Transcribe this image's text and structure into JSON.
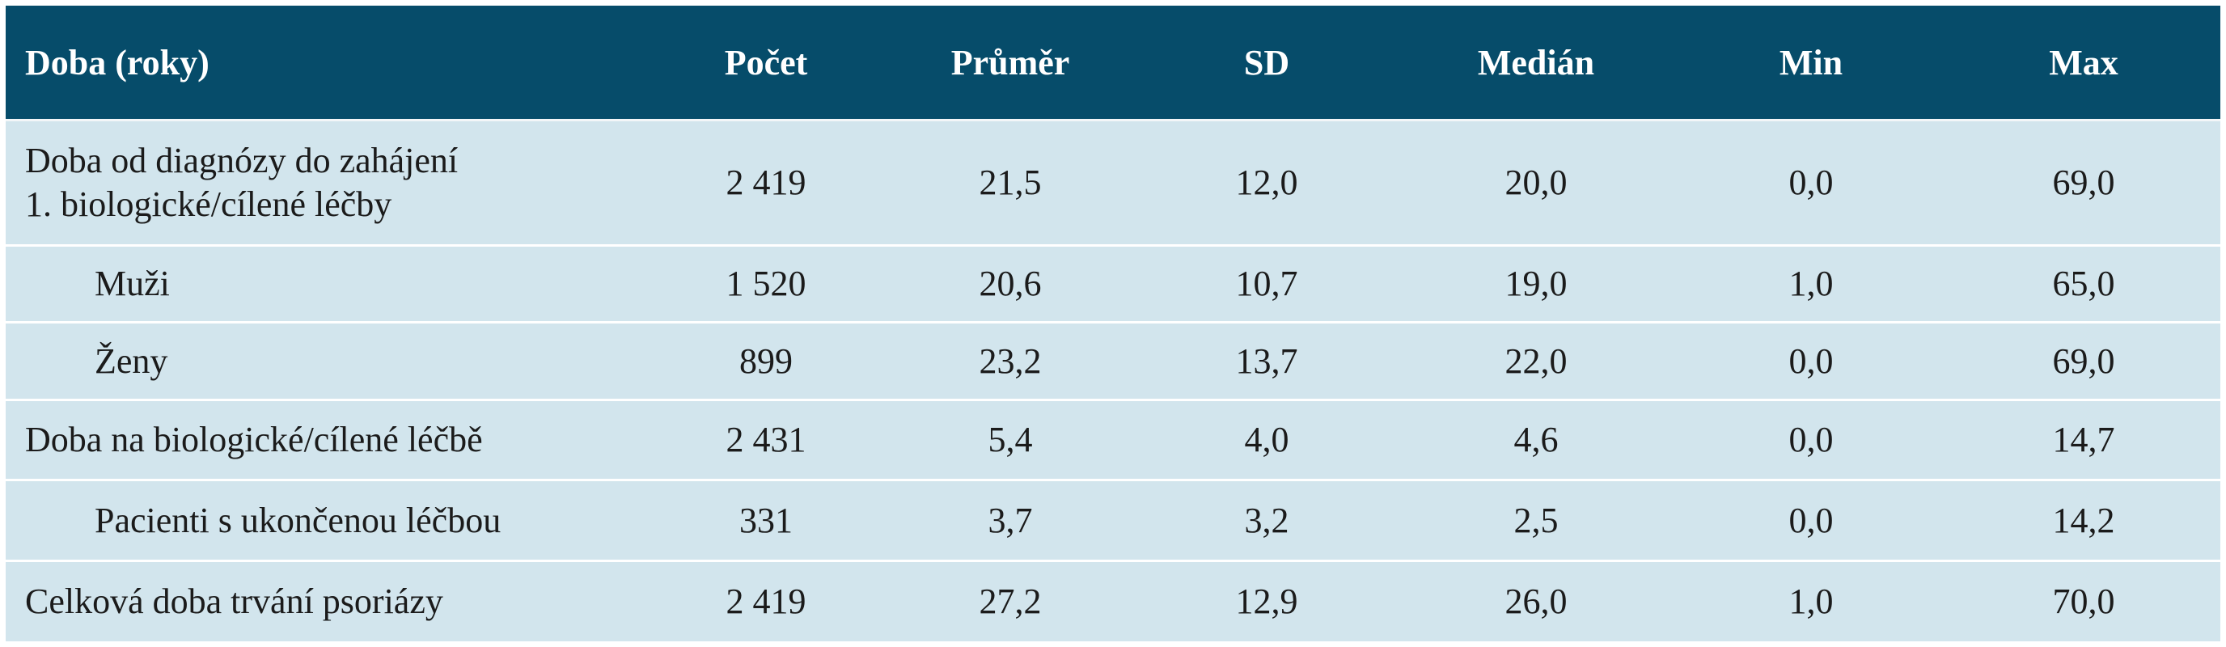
{
  "table": {
    "headers": [
      "Doba (roky)",
      "Počet",
      "Průměr",
      "SD",
      "Medián",
      "Min",
      "Max"
    ],
    "rows": [
      {
        "label": [
          "Doba od diagnózy do zahájení",
          "1. biologické/cílené léčby"
        ],
        "values": [
          "2 419",
          "21,5",
          "12,0",
          "20,0",
          "0,0",
          "69,0"
        ],
        "indent": false
      },
      {
        "label": [
          "Muži"
        ],
        "values": [
          "1 520",
          "20,6",
          "10,7",
          "19,0",
          "1,0",
          "65,0"
        ],
        "indent": true
      },
      {
        "label": [
          "Ženy"
        ],
        "values": [
          "899",
          "23,2",
          "13,7",
          "22,0",
          "0,0",
          "69,0"
        ],
        "indent": true
      },
      {
        "label": [
          "Doba na biologické/cílené léčbě"
        ],
        "values": [
          "2 431",
          "5,4",
          "4,0",
          "4,6",
          "0,0",
          "14,7"
        ],
        "indent": false
      },
      {
        "label": [
          "Pacienti s ukončenou léčbou"
        ],
        "values": [
          "331",
          "3,7",
          "3,2",
          "2,5",
          "0,0",
          "14,2"
        ],
        "indent": true
      },
      {
        "label": [
          "Celková doba trvání psoriázy"
        ],
        "values": [
          "2 419",
          "27,2",
          "12,9",
          "26,0",
          "1,0",
          "70,0"
        ],
        "indent": false
      }
    ]
  },
  "colors": {
    "header_bg": "#064c6a",
    "header_text": "#ffffff",
    "row_bg": "#d2e5ed",
    "row_text": "#1b1b1b"
  }
}
